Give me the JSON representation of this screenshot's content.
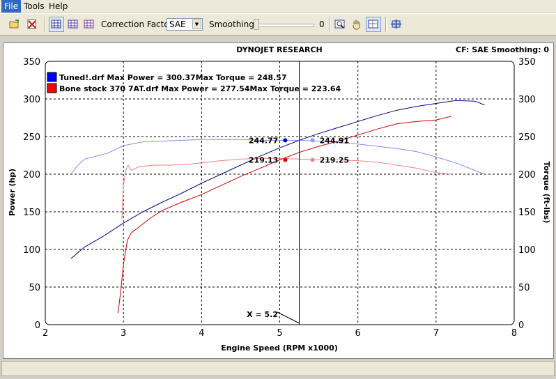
{
  "menu": [
    {
      "label": "File",
      "active": true
    },
    {
      "label": "Tools",
      "active": false
    },
    {
      "label": "Help",
      "active": false
    }
  ],
  "toolbar": {
    "correction_factor_label": "Correction Factor:",
    "correction_factor_value": "SAE",
    "smoothing_label": "Smoothing:",
    "smoothing_value": "0",
    "icons": [
      "open-file-icon",
      "close-file-icon",
      "grid-view-icon",
      "grid-view-2-icon",
      "grid-view-3-icon",
      "zoom-icon",
      "hand-pan-icon",
      "cursor-icon",
      "crosshair-icon"
    ]
  },
  "chart_data": {
    "type": "line",
    "title": "DYNOJET RESEARCH",
    "info_right": "CF: SAE  Smoothing: 0",
    "xlabel": "Engine Speed (RPM x1000)",
    "ylabel_left": "Power (hp)",
    "ylabel_right": "Torque (ft-lbs)",
    "xlim": [
      2,
      8
    ],
    "ylim_left": [
      0,
      350
    ],
    "ylim_right": [
      0,
      350
    ],
    "x_ticks": [
      "2",
      "3",
      "4",
      "5",
      "6",
      "7",
      "8"
    ],
    "y_ticks": [
      "0",
      "50",
      "100",
      "150",
      "200",
      "250",
      "300",
      "350"
    ],
    "grid": true,
    "legend": [
      {
        "text": "Tuned!.drf Max Power = 300.37Max Torque = 248.57",
        "color": "#0000ff"
      },
      {
        "text": "Bone stock 370 7AT.drf Max Power = 277.54Max Torque = 223.64",
        "color": "#ff0000"
      }
    ],
    "cursor": {
      "x": 5.25,
      "label": "X = 5.2"
    },
    "cursor_values": [
      {
        "text": "244.77",
        "x": 5.07,
        "y": 245,
        "color": "#0000cc",
        "side": "left"
      },
      {
        "text": "244.91",
        "x": 5.42,
        "y": 245,
        "color": "#8899ee",
        "side": "right"
      },
      {
        "text": "219.13",
        "x": 5.07,
        "y": 219,
        "color": "#dd0000",
        "side": "left"
      },
      {
        "text": "219.25",
        "x": 5.42,
        "y": 219,
        "color": "#ee8888",
        "side": "right"
      }
    ],
    "series": [
      {
        "name": "Tuned!.drf",
        "measure": "power",
        "color": "#00008b",
        "x": [
          2.33,
          2.5,
          2.75,
          3.0,
          3.25,
          3.5,
          3.75,
          4.0,
          4.25,
          4.5,
          4.75,
          5.0,
          5.25,
          5.5,
          5.75,
          6.0,
          6.25,
          6.5,
          6.75,
          7.0,
          7.25,
          7.5,
          7.62
        ],
        "values": [
          88,
          103,
          118,
          135,
          150,
          163,
          175,
          188,
          200,
          212,
          224,
          235,
          245,
          254,
          262,
          270,
          278,
          285,
          290,
          294,
          298,
          297,
          292
        ]
      },
      {
        "name": "Tuned!.drf",
        "measure": "torque",
        "color": "#7b8fe8",
        "x": [
          2.33,
          2.4,
          2.5,
          2.65,
          2.8,
          3.0,
          3.25,
          3.5,
          3.75,
          4.0,
          4.25,
          4.5,
          4.75,
          5.0,
          5.25,
          5.5,
          5.75,
          6.0,
          6.25,
          6.5,
          6.75,
          7.0,
          7.25,
          7.5,
          7.62
        ],
        "values": [
          200,
          210,
          220,
          224,
          228,
          238,
          243,
          244,
          245,
          246,
          246,
          246,
          245,
          245,
          245,
          244,
          242,
          240,
          237,
          234,
          230,
          223,
          215,
          205,
          200
        ]
      },
      {
        "name": "Bone stock 370 7AT.drf",
        "measure": "power",
        "color": "#cc0000",
        "x": [
          2.93,
          2.96,
          3.0,
          3.05,
          3.1,
          3.2,
          3.35,
          3.5,
          3.75,
          4.0,
          4.25,
          4.5,
          4.75,
          5.0,
          5.25,
          5.5,
          5.75,
          6.0,
          6.25,
          6.5,
          6.75,
          7.0,
          7.2
        ],
        "values": [
          15,
          40,
          80,
          112,
          122,
          130,
          142,
          152,
          163,
          173,
          185,
          197,
          208,
          219,
          229,
          237,
          244,
          252,
          260,
          267,
          270,
          272,
          277
        ]
      },
      {
        "name": "Bone stock 370 7AT.drf",
        "measure": "torque",
        "color": "#ef7f7f",
        "x": [
          2.98,
          3.0,
          3.03,
          3.06,
          3.1,
          3.2,
          3.4,
          3.6,
          3.8,
          4.0,
          4.25,
          4.5,
          4.75,
          5.0,
          5.25,
          5.5,
          5.75,
          6.0,
          6.25,
          6.5,
          6.75,
          7.0,
          7.2
        ],
        "values": [
          140,
          185,
          205,
          212,
          205,
          210,
          212,
          212,
          213,
          215,
          218,
          220,
          221,
          221,
          220,
          219,
          219,
          218,
          216,
          212,
          208,
          202,
          200
        ]
      }
    ]
  }
}
